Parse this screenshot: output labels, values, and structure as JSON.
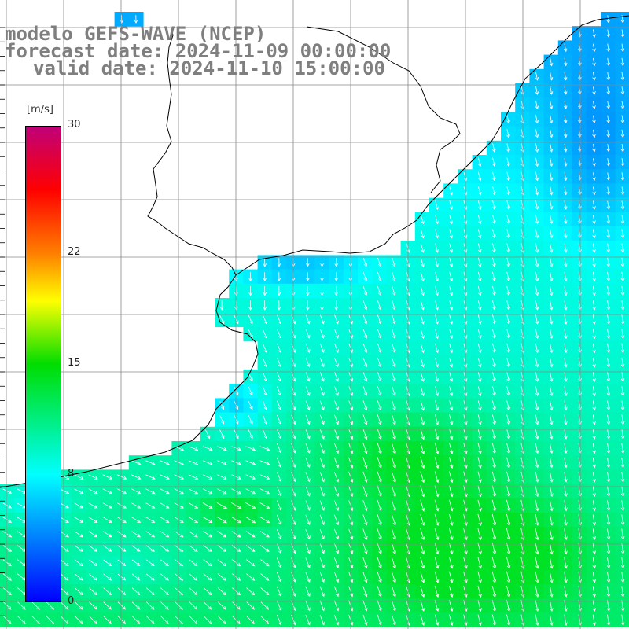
{
  "title": {
    "model": "modelo GEFS-WAVE (NCEP)",
    "forecast": "forecast date: 2024-11-09 00:00:00",
    "valid": "valid date: 2024-11-10 15:00:00"
  },
  "colorbar": {
    "unit": "[m/s]",
    "ticks": [
      {
        "label": "30",
        "value": 30
      },
      {
        "label": "22",
        "value": 22
      },
      {
        "label": "15",
        "value": 15
      },
      {
        "label": "8",
        "value": 8
      },
      {
        "label": "0",
        "value": 0
      }
    ],
    "stops": [
      {
        "value": 0,
        "color": "#0000ff"
      },
      {
        "value": 8,
        "color": "#00ffff"
      },
      {
        "value": 15,
        "color": "#00dd00"
      },
      {
        "value": 19,
        "color": "#ffff00"
      },
      {
        "value": 22,
        "color": "#ff7f00"
      },
      {
        "value": 26,
        "color": "#ff0000"
      },
      {
        "value": 30,
        "color": "#c00078"
      }
    ]
  },
  "colors": {
    "land": "#ffffff",
    "coast": "#000000",
    "grid": "#888888",
    "arrow": "#ffffff",
    "title": "#7f7f7f"
  },
  "chart_data": {
    "type": "heatmap",
    "variable": "wind speed",
    "vmin": 0,
    "vmax": 30,
    "vector_field": true
  }
}
